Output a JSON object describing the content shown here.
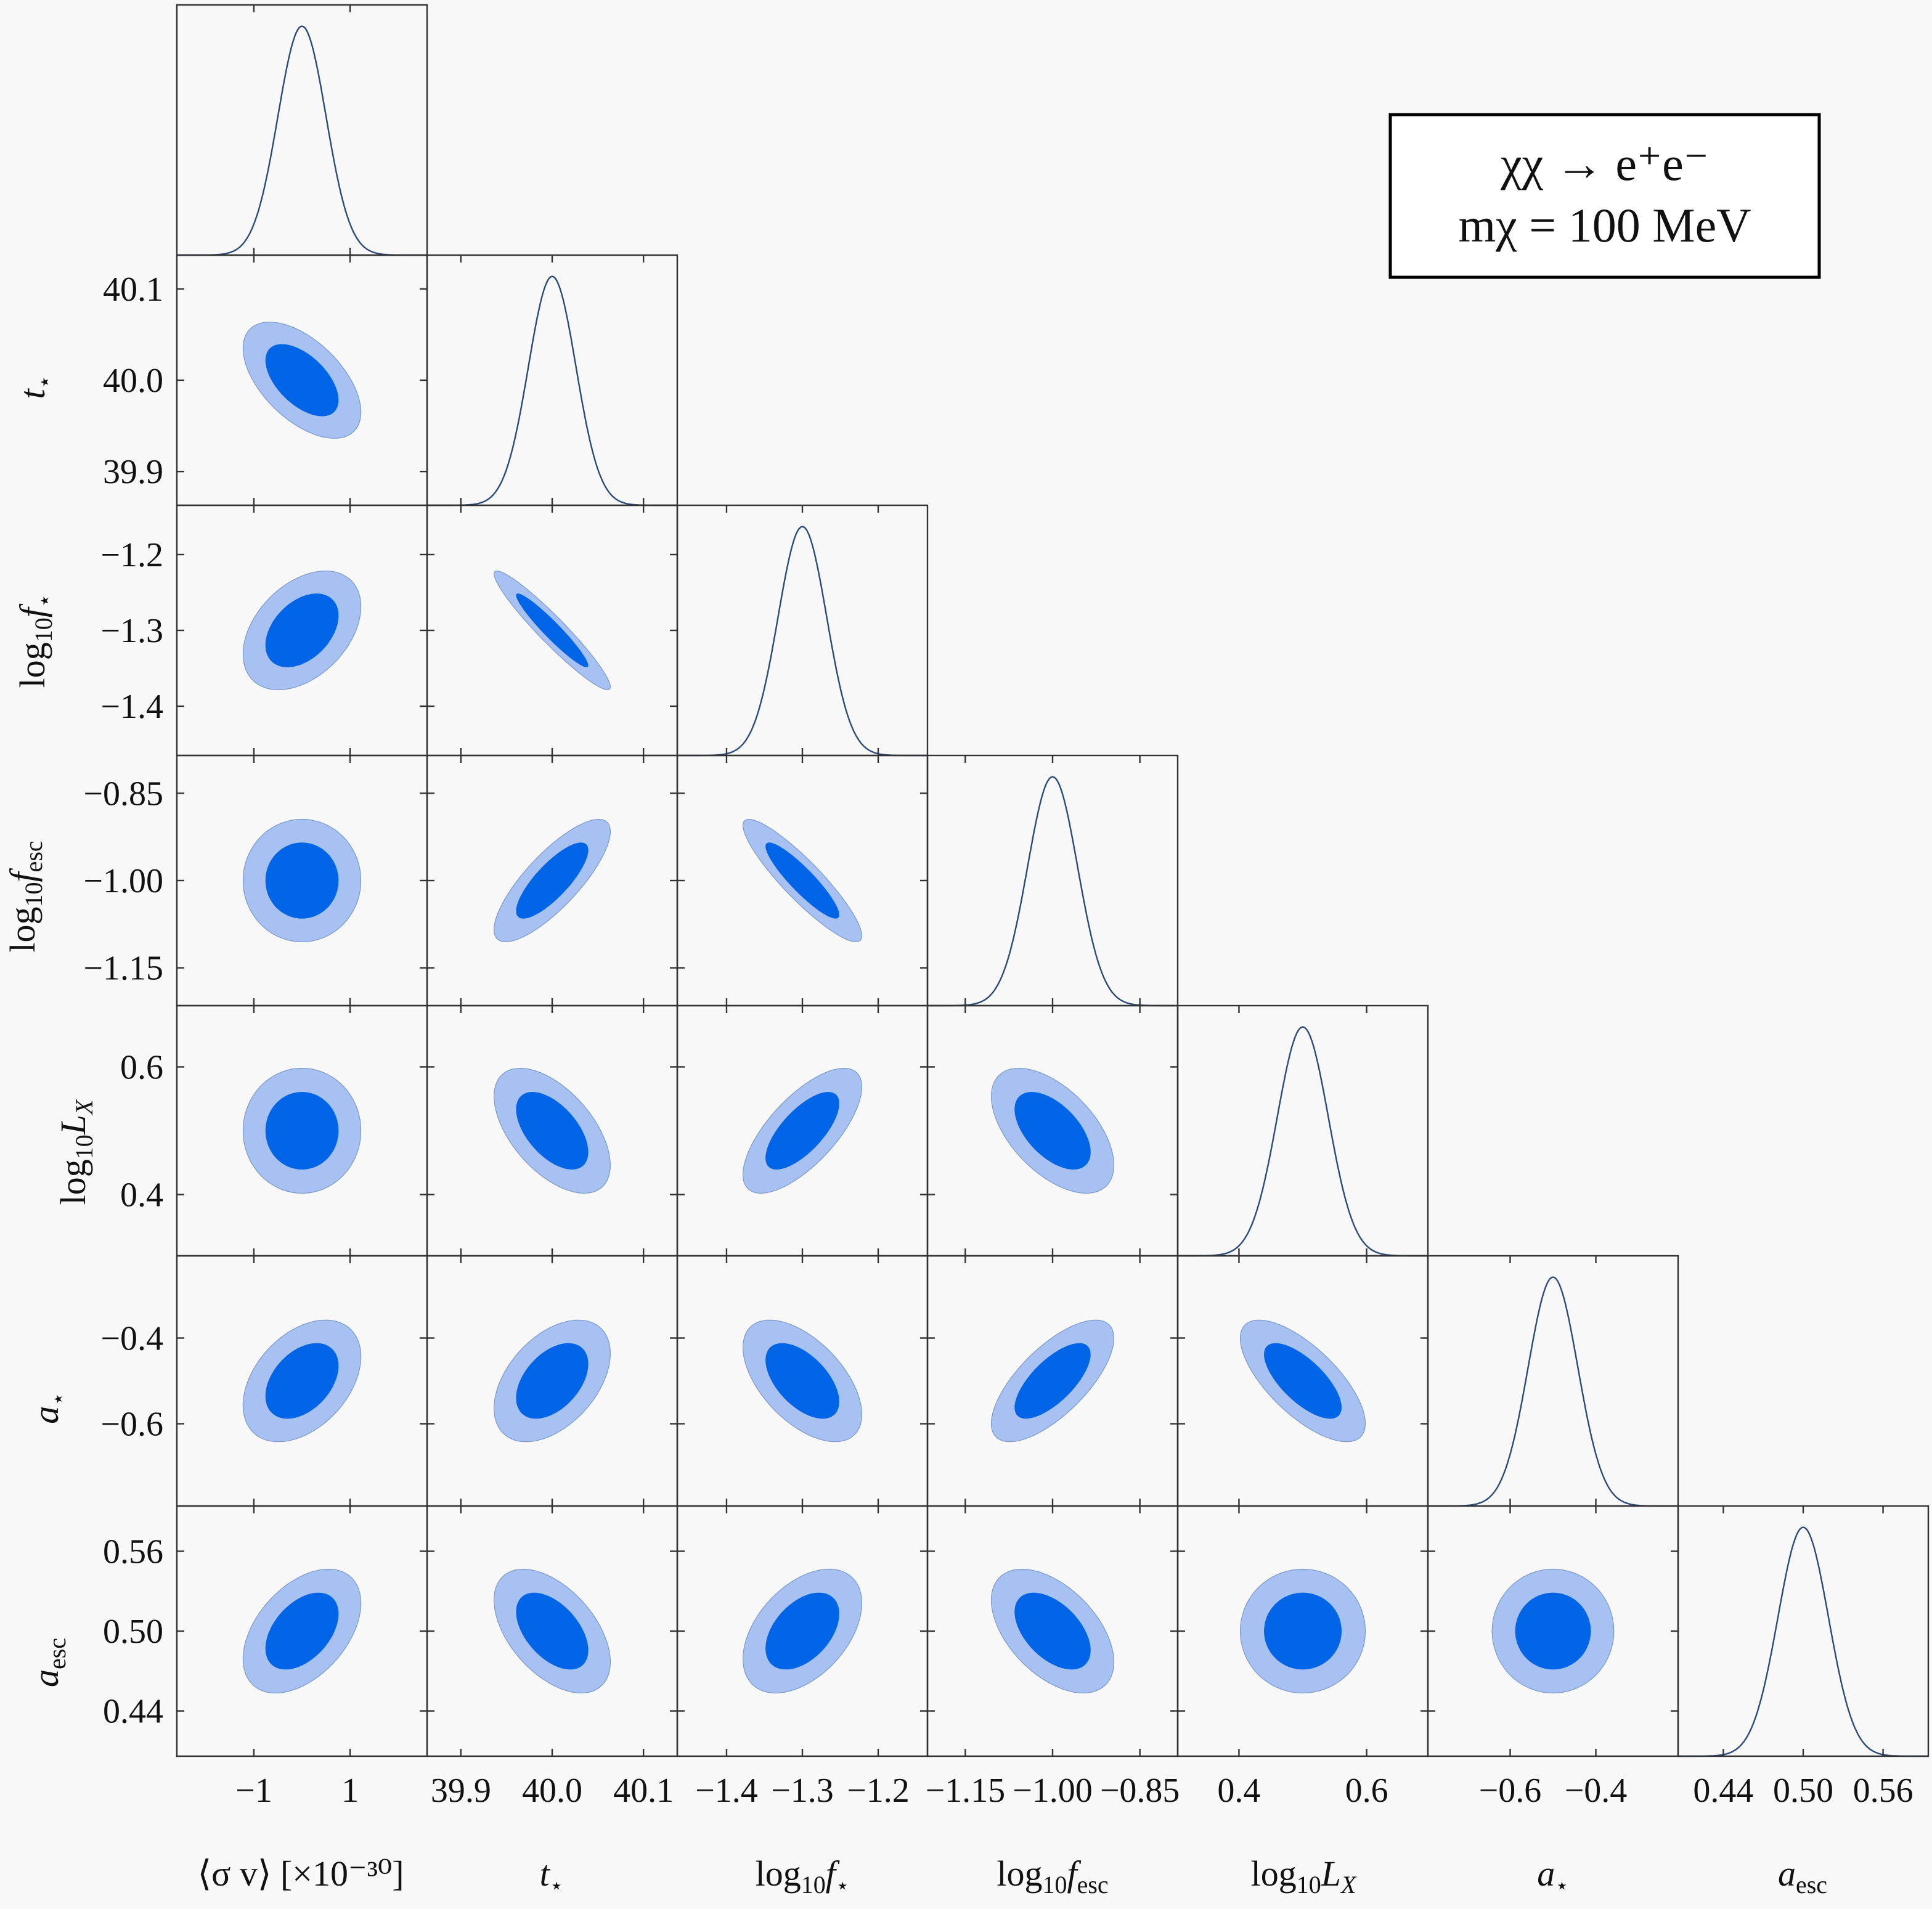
{
  "chart_data": {
    "type": "corner",
    "parameters": [
      {
        "key": "sv",
        "label": "⟨σ v⟩ [×10⁻³⁰]",
        "ticks": [
          {
            "v": -1,
            "t": "−1"
          },
          {
            "v": 1,
            "t": "1"
          }
        ],
        "range": [
          -2.6,
          2.6
        ],
        "mean": 0,
        "sigma": 0.5
      },
      {
        "key": "tstar",
        "label": "t⋆",
        "ticks": [
          {
            "v": 39.9,
            "t": "39.9"
          },
          {
            "v": 40.0,
            "t": "40.0"
          },
          {
            "v": 40.1,
            "t": "40.1"
          }
        ],
        "range": [
          39.863,
          40.137
        ],
        "mean": 40.0,
        "sigma": 0.026
      },
      {
        "key": "logfstar",
        "label": "log10f⋆",
        "ticks": [
          {
            "v": -1.4,
            "t": "−1.4"
          },
          {
            "v": -1.3,
            "t": "−1.3"
          },
          {
            "v": -1.2,
            "t": "−1.2"
          }
        ],
        "range": [
          -1.465,
          -1.135
        ],
        "mean": -1.3,
        "sigma": 0.032
      },
      {
        "key": "logfesc",
        "label": "log10fesc",
        "ticks": [
          {
            "v": -1.15,
            "t": "−1.15"
          },
          {
            "v": -1.0,
            "t": "−1.00"
          },
          {
            "v": -0.85,
            "t": "−0.85"
          }
        ],
        "range": [
          -1.215,
          -0.785
        ],
        "mean": -1.0,
        "sigma": 0.043
      },
      {
        "key": "loglx",
        "label": "log10LX",
        "ticks": [
          {
            "v": 0.4,
            "t": "0.4"
          },
          {
            "v": 0.6,
            "t": "0.6"
          }
        ],
        "range": [
          0.304,
          0.696
        ],
        "mean": 0.5,
        "sigma": 0.04
      },
      {
        "key": "astar",
        "label": "a⋆",
        "ticks": [
          {
            "v": -0.6,
            "t": "−0.6"
          },
          {
            "v": -0.4,
            "t": "−0.4"
          }
        ],
        "range": [
          -0.792,
          -0.208
        ],
        "mean": -0.5,
        "sigma": 0.058
      },
      {
        "key": "aesc",
        "label": "aesc",
        "ticks": [
          {
            "v": 0.44,
            "t": "0.44"
          },
          {
            "v": 0.5,
            "t": "0.50"
          },
          {
            "v": 0.56,
            "t": "0.56"
          }
        ],
        "range": [
          0.406,
          0.594
        ],
        "mean": 0.5,
        "sigma": 0.019
      }
    ],
    "correlations": [
      [
        1,
        -0.55,
        0.4,
        0,
        0,
        0.4,
        0.45
      ],
      [
        -0.55,
        1,
        -0.95,
        0.8,
        -0.55,
        0.45,
        -0.5
      ],
      [
        0.4,
        -0.95,
        1,
        -0.9,
        0.7,
        -0.55,
        0.45
      ],
      [
        0,
        0.8,
        -0.9,
        1,
        -0.55,
        0.7,
        -0.5
      ],
      [
        0,
        -0.55,
        0.7,
        -0.55,
        1,
        -0.7,
        0
      ],
      [
        0.4,
        0.45,
        -0.55,
        0.7,
        -0.7,
        1,
        0
      ],
      [
        0.45,
        -0.5,
        0.45,
        -0.5,
        0,
        0,
        1
      ]
    ],
    "contour_levels": [
      "68%",
      "95%"
    ],
    "colors": {
      "inner": "#0064e6",
      "outer": "#a6c1f2",
      "marginal_line": "#2a4a7a",
      "frame": "#333333"
    },
    "legend": {
      "line1": "χχ → e⁺e⁻",
      "line2": "mχ = 100 MeV",
      "placement": "top-right"
    }
  }
}
